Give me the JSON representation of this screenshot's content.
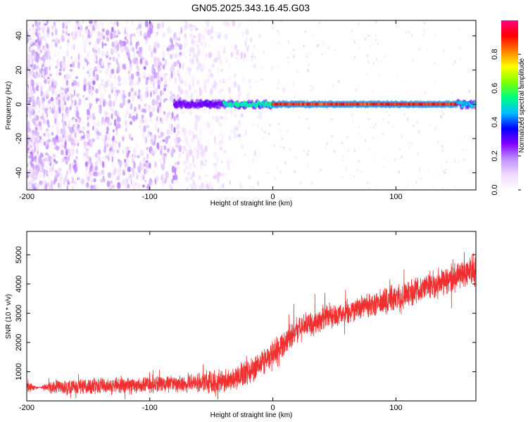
{
  "figure_title": "GN05.2025.343.16.45.G03",
  "chart_data": [
    {
      "type": "heatmap",
      "title": "",
      "xlabel": "Height of straight line (km)",
      "ylabel": "Frequency (Hz)",
      "xlim": [
        -200,
        165
      ],
      "ylim": [
        -50,
        49
      ],
      "xticks": [
        -200,
        -100,
        0,
        100
      ],
      "yticks": [
        -40,
        -20,
        0,
        20,
        40
      ],
      "colorbar": {
        "label": "Normalized spectral amplitude",
        "range": [
          0,
          1
        ],
        "ticks": [
          "0.0",
          "0.2",
          "0.4",
          "0.6",
          "0.8"
        ],
        "colors": [
          "#ffffff",
          "#f0d8ff",
          "#c090ff",
          "#8000ff",
          "#0000ff",
          "#00c0ff",
          "#00ff80",
          "#80ff00",
          "#ffff00",
          "#ff8000",
          "#ff0000",
          "#ff0080"
        ]
      },
      "ridge": {
        "frequency_hz": 0,
        "segments": [
          {
            "x_from": -80,
            "x_to": -40,
            "amplitude": 0.3
          },
          {
            "x_from": -40,
            "x_to": 0,
            "amplitude": 0.55
          },
          {
            "x_from": 0,
            "x_to": 150,
            "amplitude": 0.95
          },
          {
            "x_from": 150,
            "x_to": 165,
            "amplitude": 0.5
          }
        ]
      },
      "noise_region": {
        "x_from": -200,
        "x_to": -20,
        "peak_amplitude": 0.2
      }
    },
    {
      "type": "line",
      "title": "",
      "xlabel": "Height of straight line (km)",
      "ylabel": "SNR (10 * v/v)",
      "xlim": [
        -200,
        165
      ],
      "ylim": [
        0,
        5800
      ],
      "xticks": [
        -200,
        -100,
        0,
        100
      ],
      "yticks": [
        1000,
        2000,
        3000,
        4000,
        5000
      ],
      "color": "#f03030",
      "x": [
        -200,
        -180,
        -160,
        -140,
        -120,
        -100,
        -80,
        -60,
        -40,
        -20,
        0,
        20,
        40,
        60,
        80,
        100,
        120,
        140,
        160,
        165
      ],
      "y": [
        450,
        470,
        500,
        520,
        540,
        560,
        580,
        620,
        700,
        950,
        1600,
        2450,
        2800,
        3050,
        3250,
        3500,
        3850,
        4100,
        4450,
        4500
      ],
      "noise_band": [
        -250,
        250,
        320,
        350,
        350,
        330,
        330,
        400,
        450,
        500,
        500,
        500,
        500,
        500,
        520,
        530,
        560,
        600,
        650,
        650
      ]
    }
  ]
}
